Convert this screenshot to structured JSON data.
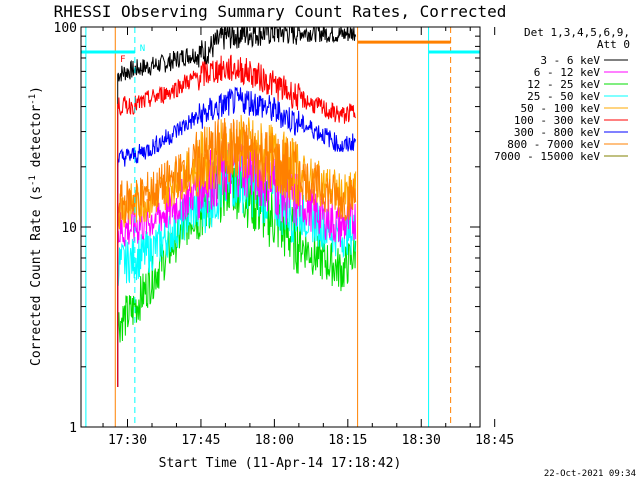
{
  "chart_data": {
    "type": "line",
    "title": "RHESSI Observing Summary Count Rates, Corrected",
    "xlabel": "Start Time (11-Apr-14 17:18:42)",
    "ylabel": {
      "main": "Corrected Count Rate (s",
      "sup1": "-1",
      "mid": " detector",
      "sup2": "-1",
      "end": ")"
    },
    "y_scale": "log",
    "ylim": [
      1,
      100
    ],
    "y_ticks": [
      {
        "value": 1,
        "label": "1"
      },
      {
        "value": 10,
        "label": "10"
      },
      {
        "value": 100,
        "label": "100"
      }
    ],
    "xlim_minutes": [
      -24.5,
      57
    ],
    "x_ticks": [
      {
        "minute": -15,
        "label": "17:30"
      },
      {
        "minute": 0,
        "label": "17:45"
      },
      {
        "minute": 15,
        "label": "18:00"
      },
      {
        "minute": 30,
        "label": "18:15"
      },
      {
        "minute": 45,
        "label": "18:30"
      },
      {
        "minute": 60,
        "label": "18:45"
      }
    ],
    "legend_header": [
      "Det 1,3,4,5,6,9,",
      "Att 0"
    ],
    "legend": [
      {
        "label": "3 - 6 keV",
        "color": "#000000"
      },
      {
        "label": "6 - 12 keV",
        "color": "#ff00ff"
      },
      {
        "label": "12 - 25 keV",
        "color": "#00dd00"
      },
      {
        "label": "25 - 50 keV",
        "color": "#00ffff"
      },
      {
        "label": "50 - 100 keV",
        "color": "#ffaa00"
      },
      {
        "label": "100 - 300 keV",
        "color": "#ff0000"
      },
      {
        "label": "300 - 800 keV",
        "color": "#0000ff"
      },
      {
        "label": "800 - 7000 keV",
        "color": "#ff8000"
      },
      {
        "label": "7000 - 15000 keV",
        "color": "#808000"
      }
    ],
    "markers": {
      "F": {
        "label": "F",
        "color": "#ff0000"
      },
      "N": {
        "label": "N",
        "color": "#00ffff"
      }
    },
    "flags": [
      {
        "type": "vline",
        "minute": -23.5,
        "color": "#00ffff",
        "dash": false
      },
      {
        "type": "vline",
        "minute": -17.5,
        "color": "#ff8000",
        "dash": false
      },
      {
        "type": "vline",
        "minute": -13.5,
        "color": "#00ffff",
        "dash": true
      },
      {
        "type": "vline",
        "minute": 32.0,
        "color": "#ff8000",
        "dash": false
      },
      {
        "type": "vline",
        "minute": 46.5,
        "color": "#00ffff",
        "dash": false
      },
      {
        "type": "vline",
        "minute": 51.0,
        "color": "#ff8000",
        "dash": true
      },
      {
        "type": "vline",
        "minute": 58.5,
        "color": "#00ffff",
        "dash": true
      },
      {
        "type": "hline",
        "from": -24.5,
        "to": -13.5,
        "value": 75,
        "color": "#00ffff"
      },
      {
        "type": "hline",
        "from": 46.5,
        "to": 58.5,
        "value": 75,
        "color": "#00ffff"
      },
      {
        "type": "hline",
        "from": 32.0,
        "to": 51.0,
        "value": 84,
        "color": "#ff8000"
      }
    ],
    "series_window": [
      -17.0,
      31.7
    ],
    "series": [
      {
        "name": "3 - 6 keV",
        "color": "#000000",
        "points": [
          [
            -17,
            58
          ],
          [
            -13,
            62
          ],
          [
            -7,
            66
          ],
          [
            -3,
            72
          ],
          [
            1,
            75
          ],
          [
            5,
            90
          ],
          [
            11,
            94
          ],
          [
            17,
            95
          ],
          [
            23,
            94
          ],
          [
            29,
            92
          ],
          [
            31.5,
            94
          ]
        ]
      },
      {
        "name": "6 - 12 keV",
        "color": "#ff00ff",
        "points": [
          [
            -17,
            9.5
          ],
          [
            -13,
            10.2
          ],
          [
            -7,
            12
          ],
          [
            -3,
            14
          ],
          [
            1,
            17
          ],
          [
            5,
            19
          ],
          [
            8,
            21
          ],
          [
            11,
            19
          ],
          [
            14,
            17
          ],
          [
            17,
            15
          ],
          [
            20,
            13.5
          ],
          [
            23,
            12
          ],
          [
            26,
            11
          ],
          [
            28.5,
            10
          ],
          [
            31.5,
            11
          ]
        ]
      },
      {
        "name": "12 - 25 keV",
        "color": "#00dd00",
        "points": [
          [
            -17,
            3.3
          ],
          [
            -14,
            3.8
          ],
          [
            -10,
            5.5
          ],
          [
            -6,
            8
          ],
          [
            -2,
            11
          ],
          [
            2,
            14
          ],
          [
            6,
            17
          ],
          [
            9,
            15
          ],
          [
            12,
            12.5
          ],
          [
            15,
            11
          ],
          [
            18,
            9.2
          ],
          [
            21,
            8
          ],
          [
            24,
            7
          ],
          [
            27,
            6.5
          ],
          [
            29,
            6
          ],
          [
            31.5,
            7.5
          ]
        ]
      },
      {
        "name": "25 - 50 keV",
        "color": "#00ffff",
        "points": [
          [
            -17,
            6.5
          ],
          [
            -13,
            7
          ],
          [
            -9,
            8
          ],
          [
            -5,
            10
          ],
          [
            -1,
            12.5
          ],
          [
            3,
            15
          ],
          [
            7,
            18
          ],
          [
            10,
            16.5
          ],
          [
            13,
            15
          ],
          [
            16,
            13.5
          ],
          [
            19,
            12
          ],
          [
            22,
            11
          ],
          [
            25,
            10
          ],
          [
            28,
            9
          ],
          [
            31.5,
            9.5
          ]
        ]
      },
      {
        "name": "50 - 100 keV",
        "color": "#ffaa00",
        "points": [
          [
            -17,
            12.5
          ],
          [
            -13,
            13
          ],
          [
            -9,
            14.5
          ],
          [
            -5,
            17
          ],
          [
            -1,
            20
          ],
          [
            3,
            23
          ],
          [
            7,
            25.5
          ],
          [
            11,
            24
          ],
          [
            15,
            22
          ],
          [
            19,
            19
          ],
          [
            23,
            17
          ],
          [
            27,
            15.5
          ],
          [
            29,
            14
          ],
          [
            31.5,
            15
          ]
        ]
      },
      {
        "name": "100 - 300 keV",
        "color": "#ff0000",
        "points": [
          [
            -17,
            40
          ],
          [
            -13,
            41
          ],
          [
            -10,
            44
          ],
          [
            -6,
            48
          ],
          [
            -3,
            53
          ],
          [
            0,
            57
          ],
          [
            3,
            61
          ],
          [
            7,
            62
          ],
          [
            10,
            59
          ],
          [
            14,
            53
          ],
          [
            18,
            47
          ],
          [
            22,
            42
          ],
          [
            26,
            38
          ],
          [
            29,
            36
          ],
          [
            31.5,
            38
          ]
        ]
      },
      {
        "name": "300 - 800 keV",
        "color": "#0000ff",
        "points": [
          [
            -17,
            22
          ],
          [
            -13,
            23
          ],
          [
            -10,
            25
          ],
          [
            -6,
            29
          ],
          [
            -2,
            34
          ],
          [
            2,
            38
          ],
          [
            6,
            42
          ],
          [
            9,
            43
          ],
          [
            12,
            41
          ],
          [
            16,
            37
          ],
          [
            20,
            33
          ],
          [
            24,
            30
          ],
          [
            27,
            27
          ],
          [
            29,
            25
          ],
          [
            31.5,
            27
          ]
        ]
      },
      {
        "name": "800 - 7000 keV",
        "color": "#ff8000",
        "points": [
          [
            -17,
            13
          ],
          [
            -13,
            14
          ],
          [
            -9,
            15.5
          ],
          [
            -5,
            18
          ],
          [
            -1,
            21
          ],
          [
            3,
            24
          ],
          [
            7,
            24.5
          ],
          [
            11,
            23
          ],
          [
            15,
            21
          ],
          [
            19,
            18.5
          ],
          [
            23,
            16.5
          ],
          [
            27,
            14.5
          ],
          [
            29,
            13.5
          ],
          [
            31.5,
            14.5
          ]
        ]
      }
    ],
    "grid": false,
    "legend_position": "right"
  },
  "footer": {
    "timestamp": "22-Oct-2021 09:34"
  }
}
